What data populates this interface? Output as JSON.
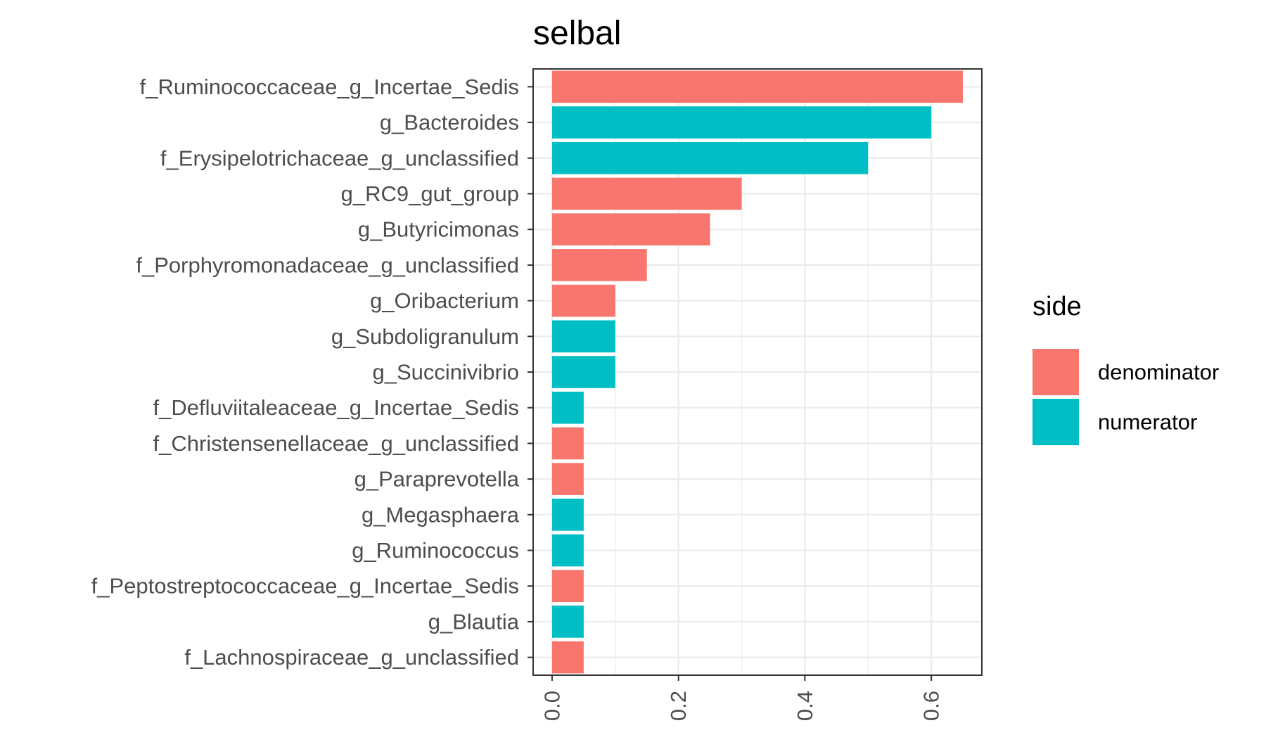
{
  "chart_data": {
    "type": "bar",
    "orientation": "horizontal",
    "title": "selbal",
    "xlabel": "",
    "ylabel": "",
    "categories": [
      "f_Ruminococcaceae_g_Incertae_Sedis",
      "g_Bacteroides",
      "f_Erysipelotrichaceae_g_unclassified",
      "g_RC9_gut_group",
      "g_Butyricimonas",
      "f_Porphyromonadaceae_g_unclassified",
      "g_Oribacterium",
      "g_Subdoligranulum",
      "g_Succinivibrio",
      "f_Defluviitaleaceae_g_Incertae_Sedis",
      "f_Christensenellaceae_g_unclassified",
      "g_Paraprevotella",
      "g_Megasphaera",
      "g_Ruminococcus",
      "f_Peptostreptococcaceae_g_Incertae_Sedis",
      "g_Blautia",
      "f_Lachnospiraceae_g_unclassified"
    ],
    "values": [
      0.65,
      0.6,
      0.5,
      0.3,
      0.25,
      0.15,
      0.1,
      0.1,
      0.1,
      0.05,
      0.05,
      0.05,
      0.05,
      0.05,
      0.05,
      0.05,
      0.05
    ],
    "groups": [
      "denominator",
      "numerator",
      "numerator",
      "denominator",
      "denominator",
      "denominator",
      "denominator",
      "numerator",
      "numerator",
      "numerator",
      "denominator",
      "denominator",
      "numerator",
      "numerator",
      "denominator",
      "numerator",
      "denominator"
    ],
    "xlim": [
      -0.03,
      0.68
    ],
    "xticks": [
      0.0,
      0.2,
      0.4,
      0.6
    ],
    "xtick_labels": [
      "0.0",
      "0.2",
      "0.4",
      "0.6"
    ],
    "grid": true,
    "legend": {
      "title": "side",
      "position": "right",
      "entries": [
        {
          "label": "denominator",
          "color": "#F8766D"
        },
        {
          "label": "numerator",
          "color": "#00BFC4"
        }
      ]
    }
  }
}
